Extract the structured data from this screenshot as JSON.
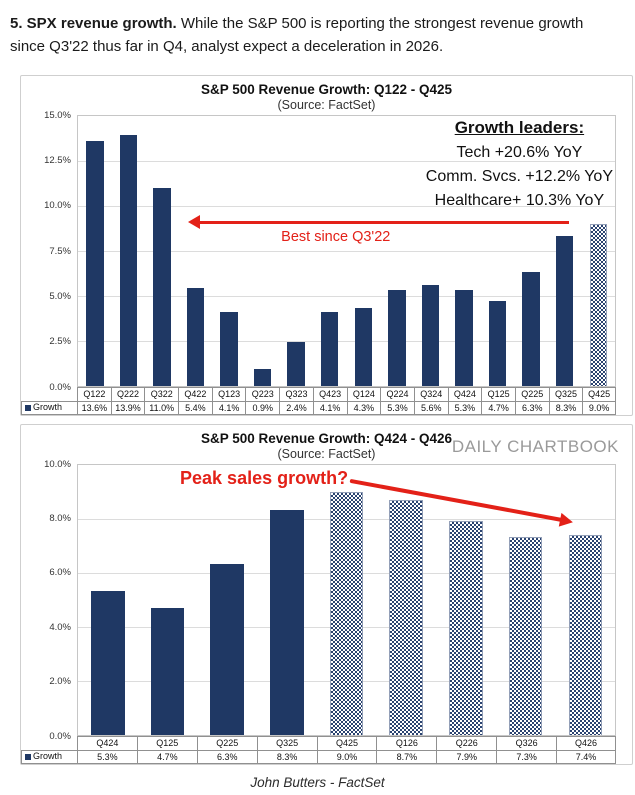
{
  "page": {
    "heading_bold": "5. SPX revenue growth.",
    "heading_rest": " While the S&P 500 is reporting the strongest revenue growth since Q3'22 thus far in Q4, analyst expect a deceleration in 2026.",
    "footer": "John Butters - FactSet"
  },
  "colors": {
    "bar_navy": "#1f3864",
    "accent_red": "#e32118",
    "watermark_gray": "#9a9a9a"
  },
  "chart_data": [
    {
      "type": "bar",
      "title": "S&P 500 Revenue Growth: Q122 - Q425",
      "subtitle": "(Source: FactSet)",
      "legend": "Growth",
      "categories": [
        "Q122",
        "Q222",
        "Q322",
        "Q422",
        "Q123",
        "Q223",
        "Q323",
        "Q423",
        "Q124",
        "Q224",
        "Q324",
        "Q424",
        "Q125",
        "Q225",
        "Q325",
        "Q425"
      ],
      "values": [
        13.6,
        13.9,
        11.0,
        5.4,
        4.1,
        0.9,
        2.4,
        4.1,
        4.3,
        5.3,
        5.6,
        5.3,
        4.7,
        6.3,
        8.3,
        9.0
      ],
      "value_labels": [
        "13.6%",
        "13.9%",
        "11.0%",
        "5.4%",
        "4.1%",
        "0.9%",
        "2.4%",
        "4.1%",
        "4.3%",
        "5.3%",
        "5.6%",
        "5.3%",
        "4.7%",
        "6.3%",
        "8.3%",
        "9.0%"
      ],
      "is_estimate": [
        false,
        false,
        false,
        false,
        false,
        false,
        false,
        false,
        false,
        false,
        false,
        false,
        false,
        false,
        false,
        true
      ],
      "ylim": [
        0,
        15
      ],
      "yticks": [
        "15.0%",
        "12.5%",
        "10.0%",
        "7.5%",
        "5.0%",
        "2.5%",
        "0.0%"
      ],
      "grid": true,
      "annotations": {
        "arrow_label": "Best since Q3'22",
        "growth_leaders": {
          "title": "Growth leaders:",
          "lines": [
            "Tech +20.6% YoY",
            "Comm. Svcs. +12.2% YoY",
            "Healthcare+ 10.3% YoY"
          ]
        }
      }
    },
    {
      "type": "bar",
      "title": "S&P 500 Revenue Growth: Q424 - Q426",
      "subtitle": "(Source: FactSet)",
      "legend": "Growth",
      "watermark": "DAILY CHARTBOOK",
      "categories": [
        "Q424",
        "Q125",
        "Q225",
        "Q325",
        "Q425",
        "Q126",
        "Q226",
        "Q326",
        "Q426"
      ],
      "values": [
        5.3,
        4.7,
        6.3,
        8.3,
        9.0,
        8.7,
        7.9,
        7.3,
        7.4
      ],
      "value_labels": [
        "5.3%",
        "4.7%",
        "6.3%",
        "8.3%",
        "9.0%",
        "8.7%",
        "7.9%",
        "7.3%",
        "7.4%"
      ],
      "is_estimate": [
        false,
        false,
        false,
        false,
        true,
        true,
        true,
        true,
        true
      ],
      "ylim": [
        0,
        10
      ],
      "yticks": [
        "10.0%",
        "8.0%",
        "6.0%",
        "4.0%",
        "2.0%",
        "0.0%"
      ],
      "grid": true,
      "annotations": {
        "label": "Peak sales growth?"
      }
    }
  ]
}
